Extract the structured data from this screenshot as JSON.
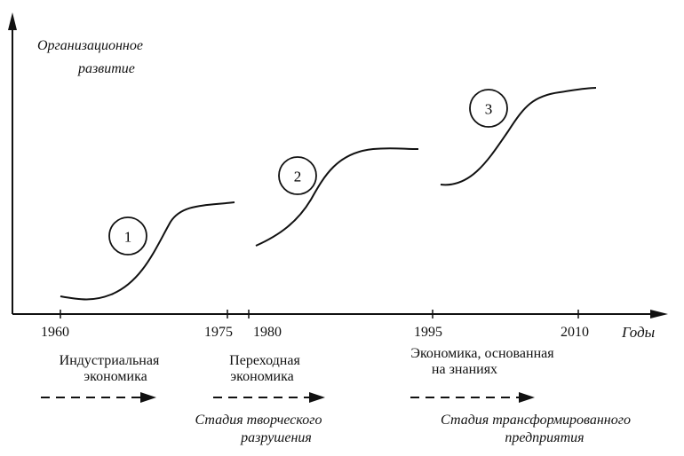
{
  "axis": {
    "y_label_line1": "Организационное",
    "y_label_line2": "развитие",
    "x_label": "Годы",
    "ticks": [
      "1960",
      "1975",
      "1980",
      "1995",
      "2010"
    ]
  },
  "curves": [
    {
      "label": "1"
    },
    {
      "label": "2"
    },
    {
      "label": "3"
    }
  ],
  "eras": [
    {
      "line1": "Индустриальная",
      "line2": "экономика"
    },
    {
      "line1": "Переходная",
      "line2": "экономика"
    },
    {
      "line1": "Экономика, основанная",
      "line2": "на знаниях"
    }
  ],
  "stages": [
    {
      "line1": "Стадия творческого",
      "line2": "разрушения"
    },
    {
      "line1": "Стадия трансформированного",
      "line2": "предприятия"
    }
  ]
}
